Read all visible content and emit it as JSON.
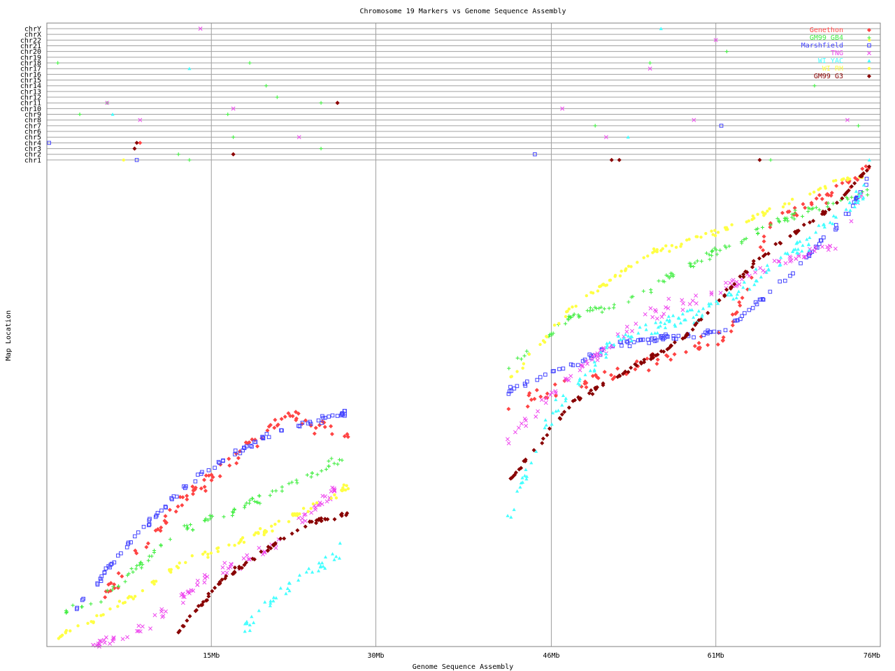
{
  "chart_data": {
    "type": "scatter",
    "title": "Chromosome 19 Markers vs Genome Sequence Assembly",
    "xlabel": "Genome Sequence Assembly",
    "ylabel": "Map Location",
    "xlim": [
      0,
      76
    ],
    "x_unit": "Mb",
    "x_ticks": [
      {
        "value": 15,
        "label": "15Mb"
      },
      {
        "value": 30,
        "label": "30Mb"
      },
      {
        "value": 46,
        "label": "46Mb"
      },
      {
        "value": 61,
        "label": "61Mb"
      },
      {
        "value": 76,
        "label": "76Mb"
      }
    ],
    "chromosome_rows": [
      "chr1",
      "chr2",
      "chr3",
      "chr4",
      "chr5",
      "chr6",
      "chr7",
      "chr8",
      "chr9",
      "chr10",
      "chr11",
      "chr12",
      "chr13",
      "chr14",
      "chr15",
      "chr16",
      "chr17",
      "chr18",
      "chr19",
      "chr20",
      "chr21",
      "chr22",
      "chrX",
      "chrY"
    ],
    "legend_position": "top-right",
    "grid": true,
    "series": [
      {
        "name": "Genethon",
        "color": "#ff4444",
        "marker": "diamond",
        "map_trend": [
          [
            5,
            10
          ],
          [
            12,
            30
          ],
          [
            22,
            48
          ],
          [
            28,
            44
          ],
          [
            45,
            52
          ],
          [
            52,
            57
          ],
          [
            62,
            64
          ],
          [
            66,
            88
          ],
          [
            75,
            99
          ]
        ],
        "scatter": [
          0.14,
          0.07
        ],
        "off_chrom": [
          [
            8.5,
            "chr4"
          ],
          [
            17,
            "chr2"
          ],
          [
            26.5,
            "chr11"
          ]
        ]
      },
      {
        "name": "GM99 GB4",
        "color": "#44ee44",
        "marker": "plus",
        "map_trend": [
          [
            0.5,
            6
          ],
          [
            5,
            10
          ],
          [
            12,
            24
          ],
          [
            17,
            28
          ],
          [
            24,
            36
          ],
          [
            28,
            40
          ],
          [
            42,
            58
          ],
          [
            48,
            69
          ],
          [
            52,
            71
          ],
          [
            60,
            81
          ],
          [
            67,
            89
          ],
          [
            74,
            94
          ],
          [
            75,
            95
          ]
        ],
        "scatter": [
          0.07,
          0.05
        ],
        "off_chrom": [
          [
            1,
            "chr18"
          ],
          [
            3,
            "chr9"
          ],
          [
            5.5,
            "chr11"
          ],
          [
            12,
            "chr2"
          ],
          [
            13,
            "chr1"
          ],
          [
            16.5,
            "chr9"
          ],
          [
            17,
            "chr5"
          ],
          [
            18.5,
            "chr18"
          ],
          [
            20,
            "chr14"
          ],
          [
            21,
            "chr12"
          ],
          [
            25,
            "chr11"
          ],
          [
            25,
            "chr3"
          ],
          [
            50,
            "chr7"
          ],
          [
            55,
            "chr18"
          ],
          [
            62,
            "chr20"
          ],
          [
            70,
            "chr14"
          ],
          [
            66,
            "chr1"
          ],
          [
            74,
            "chr7"
          ]
        ]
      },
      {
        "name": "Marshfield",
        "color": "#4444ff",
        "marker": "square",
        "map_trend": [
          [
            2,
            6
          ],
          [
            8,
            23
          ],
          [
            14,
            36
          ],
          [
            20,
            44
          ],
          [
            26,
            48
          ],
          [
            42,
            53
          ],
          [
            48,
            59
          ],
          [
            52,
            63
          ],
          [
            62,
            66
          ],
          [
            68,
            78
          ],
          [
            73,
            90
          ],
          [
            75,
            98
          ]
        ],
        "scatter": [
          0.05,
          0.04
        ],
        "off_chrom": [
          [
            0.2,
            "chr4"
          ],
          [
            8.2,
            "chr1"
          ],
          [
            44.5,
            "chr2"
          ],
          [
            61.5,
            "chr7"
          ]
        ]
      },
      {
        "name": "TNG",
        "color": "#ee44ee",
        "marker": "cross",
        "map_trend": [
          [
            4,
            0
          ],
          [
            9,
            4
          ],
          [
            15,
            15
          ],
          [
            20,
            20
          ],
          [
            27,
            34
          ],
          [
            42,
            43
          ],
          [
            48,
            57
          ],
          [
            55,
            69
          ],
          [
            62,
            75
          ],
          [
            67,
            80
          ],
          [
            72,
            84
          ],
          [
            75,
            97
          ]
        ],
        "scatter": [
          0.1,
          0.06
        ],
        "off_chrom": [
          [
            14,
            "chrY"
          ],
          [
            5.5,
            "chr11"
          ],
          [
            8.5,
            "chr8"
          ],
          [
            17,
            "chr10"
          ],
          [
            23,
            "chr5"
          ],
          [
            47,
            "chr10"
          ],
          [
            51,
            "chr5"
          ],
          [
            55,
            "chr17"
          ],
          [
            59,
            "chr8"
          ],
          [
            61,
            "chr22"
          ],
          [
            73,
            "chr8"
          ]
        ]
      },
      {
        "name": "WI YAC",
        "color": "#44ffff",
        "marker": "triangle",
        "map_trend": [
          [
            18,
            4
          ],
          [
            22,
            12
          ],
          [
            28,
            22
          ],
          [
            42,
            27
          ],
          [
            46,
            48
          ],
          [
            52,
            64
          ],
          [
            60,
            70
          ],
          [
            68,
            82
          ],
          [
            75,
            95
          ]
        ],
        "scatter": [
          0.14,
          0.08
        ],
        "off_chrom": [
          [
            13,
            "chr17"
          ],
          [
            6,
            "chr9"
          ],
          [
            53,
            "chr5"
          ],
          [
            56,
            "chrY"
          ],
          [
            75,
            "chr1"
          ]
        ]
      },
      {
        "name": "WI RH",
        "color": "#ffff44",
        "marker": "star",
        "map_trend": [
          [
            1,
            2
          ],
          [
            4,
            5
          ],
          [
            12,
            17
          ],
          [
            20,
            24
          ],
          [
            28,
            34
          ],
          [
            42,
            55
          ],
          [
            48,
            71
          ],
          [
            55,
            82
          ],
          [
            62,
            87
          ],
          [
            68,
            93
          ],
          [
            72,
            97
          ],
          [
            75,
            98
          ]
        ],
        "scatter": [
          0.06,
          0.05
        ],
        "off_chrom": [
          [
            7,
            "chr1"
          ],
          [
            75,
            "chr22"
          ]
        ]
      },
      {
        "name": "GM99 G3",
        "color": "#880000",
        "marker": "diamond",
        "map_trend": [
          [
            12,
            3
          ],
          [
            16,
            14
          ],
          [
            24,
            26
          ],
          [
            42,
            34
          ],
          [
            48,
            51
          ],
          [
            58,
            64
          ],
          [
            65,
            81
          ],
          [
            72,
            92
          ],
          [
            75,
            100
          ]
        ],
        "scatter": [
          0.04,
          0.03
        ],
        "off_chrom": [
          [
            8,
            "chr3"
          ],
          [
            8.2,
            "chr4"
          ],
          [
            17,
            "chr2"
          ],
          [
            26.5,
            "chr11"
          ],
          [
            51.5,
            "chr1"
          ],
          [
            52.2,
            "chr1"
          ],
          [
            65,
            "chr1"
          ]
        ]
      }
    ]
  }
}
